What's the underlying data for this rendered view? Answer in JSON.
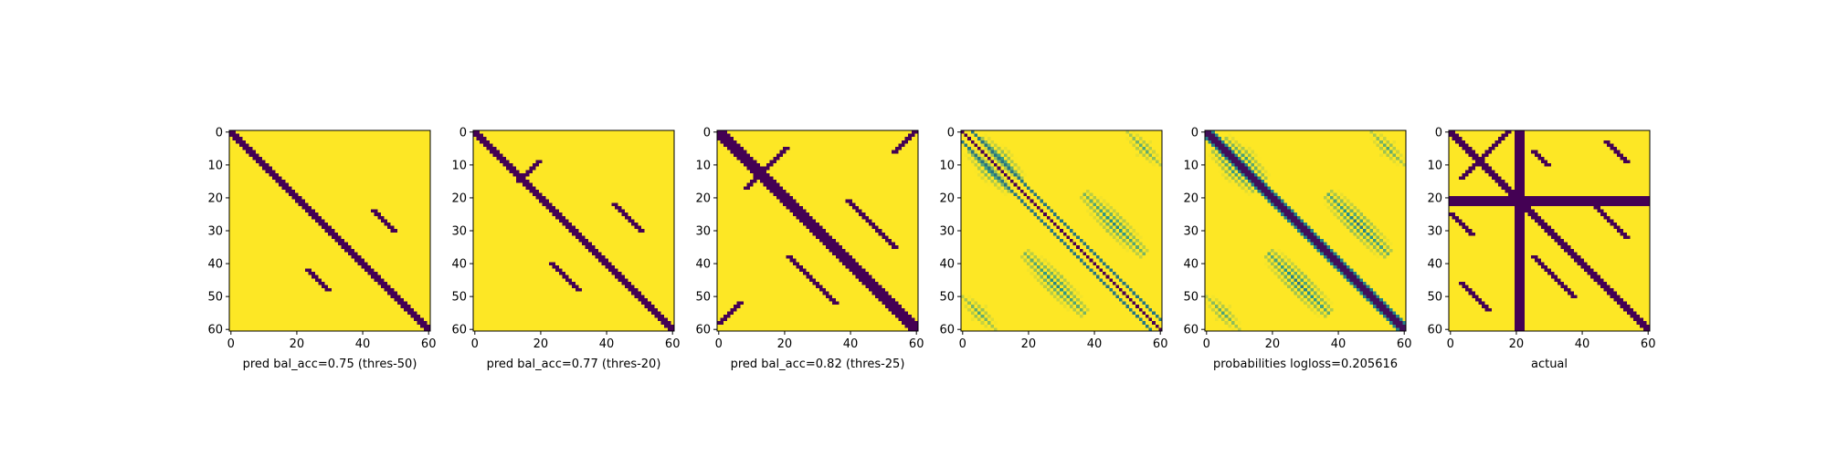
{
  "figure": {
    "background": "#ffffff",
    "colormap": {
      "low": "#440154",
      "mid": "#21918c",
      "high": "#fde725"
    }
  },
  "chart_data": [
    {
      "type": "heatmap",
      "label": "pred bal_acc=0.75 (thres-50)",
      "size": 61,
      "xlim": [
        0,
        60
      ],
      "ylim": [
        0,
        60
      ],
      "xticks": [
        0,
        20,
        40,
        60
      ],
      "yticks": [
        0,
        10,
        20,
        30,
        40,
        50,
        60
      ],
      "background_value": 1,
      "features": [
        {
          "kind": "diag",
          "offset": 0,
          "width": 2.8,
          "value": 0
        },
        {
          "kind": "blob",
          "row": 27,
          "col": 46,
          "len": 3,
          "slope": 1,
          "value": 0
        },
        {
          "kind": "blob",
          "row": 45,
          "col": 26,
          "len": 3,
          "slope": 1,
          "value": 0
        }
      ]
    },
    {
      "type": "heatmap",
      "label": "pred bal_acc=0.77 (thres-20)",
      "size": 61,
      "xlim": [
        0,
        60
      ],
      "ylim": [
        0,
        60
      ],
      "xticks": [
        0,
        20,
        40,
        60
      ],
      "yticks": [
        0,
        10,
        20,
        30,
        40,
        50,
        60
      ],
      "background_value": 1,
      "features": [
        {
          "kind": "diag",
          "offset": 0,
          "width": 3.4,
          "value": 0
        },
        {
          "kind": "blob",
          "row": 26,
          "col": 46,
          "len": 4,
          "slope": 1,
          "value": 0
        },
        {
          "kind": "blob",
          "row": 44,
          "col": 27,
          "len": 4,
          "slope": 1,
          "value": 0
        },
        {
          "kind": "blob",
          "row": 12,
          "col": 16,
          "len": 3,
          "slope": -1,
          "value": 0
        }
      ]
    },
    {
      "type": "heatmap",
      "label": "pred bal_acc=0.82 (thres-25)",
      "size": 61,
      "xlim": [
        0,
        60
      ],
      "ylim": [
        0,
        60
      ],
      "xticks": [
        0,
        20,
        40,
        60
      ],
      "yticks": [
        0,
        10,
        20,
        30,
        40,
        50,
        60
      ],
      "background_value": 1,
      "features": [
        {
          "kind": "diag",
          "offset": 0,
          "width": 4.2,
          "value": 0
        },
        {
          "kind": "blob",
          "row": 28,
          "col": 46,
          "len": 7,
          "slope": 1,
          "value": 0
        },
        {
          "kind": "blob",
          "row": 45,
          "col": 28,
          "len": 7,
          "slope": 1,
          "value": 0
        },
        {
          "kind": "blob",
          "row": 11,
          "col": 14,
          "len": 6,
          "slope": -1,
          "value": 0
        },
        {
          "kind": "blob",
          "row": 3,
          "col": 56,
          "len": 3,
          "slope": -1,
          "value": 0
        },
        {
          "kind": "blob",
          "row": 55,
          "col": 3,
          "len": 3,
          "slope": -1,
          "value": 0
        }
      ]
    },
    {
      "type": "heatmap",
      "label": "",
      "size": 61,
      "xlim": [
        0,
        60
      ],
      "ylim": [
        0,
        60
      ],
      "xticks": [
        0,
        20,
        40,
        60
      ],
      "yticks": [
        0,
        10,
        20,
        30,
        40,
        50,
        60
      ],
      "background_value": 1,
      "features": [
        {
          "kind": "diag",
          "offset": 3,
          "width": 0.8,
          "value": 0.4
        },
        {
          "kind": "diag",
          "offset": -3,
          "width": 0.8,
          "value": 0.4
        },
        {
          "kind": "diag",
          "offset": 0,
          "width": 0.6,
          "value": 0
        },
        {
          "kind": "arc",
          "row": 28,
          "col": 46,
          "len": 9,
          "value": 0.45
        },
        {
          "kind": "arc",
          "row": 46,
          "col": 28,
          "len": 9,
          "value": 0.45
        },
        {
          "kind": "arc",
          "row": 8,
          "col": 12,
          "len": 6,
          "value": 0.55
        },
        {
          "kind": "arc",
          "row": 12,
          "col": 8,
          "len": 6,
          "value": 0.55
        },
        {
          "kind": "arc",
          "row": 5,
          "col": 55,
          "len": 5,
          "value": 0.6
        },
        {
          "kind": "arc",
          "row": 55,
          "col": 5,
          "len": 5,
          "value": 0.6
        }
      ]
    },
    {
      "type": "heatmap",
      "label": "probabilities logloss=0.205616",
      "size": 61,
      "xlim": [
        0,
        60
      ],
      "ylim": [
        0,
        60
      ],
      "xticks": [
        0,
        20,
        40,
        60
      ],
      "yticks": [
        0,
        10,
        20,
        30,
        40,
        50,
        60
      ],
      "background_value": 1,
      "features": [
        {
          "kind": "diag",
          "offset": 0,
          "width": 3.0,
          "value": 0.05
        },
        {
          "kind": "diag",
          "offset": 0,
          "width": 5.5,
          "value": 0.45
        },
        {
          "kind": "arc",
          "row": 28,
          "col": 46,
          "len": 9,
          "value": 0.4
        },
        {
          "kind": "arc",
          "row": 46,
          "col": 28,
          "len": 9,
          "value": 0.4
        },
        {
          "kind": "arc",
          "row": 8,
          "col": 12,
          "len": 6,
          "value": 0.55
        },
        {
          "kind": "arc",
          "row": 12,
          "col": 8,
          "len": 6,
          "value": 0.55
        },
        {
          "kind": "arc",
          "row": 5,
          "col": 55,
          "len": 5,
          "value": 0.6
        },
        {
          "kind": "arc",
          "row": 55,
          "col": 5,
          "len": 5,
          "value": 0.6
        }
      ]
    },
    {
      "type": "heatmap",
      "label": "actual",
      "size": 61,
      "xlim": [
        0,
        60
      ],
      "ylim": [
        0,
        60
      ],
      "xticks": [
        0,
        20,
        40,
        60
      ],
      "yticks": [
        0,
        10,
        20,
        30,
        40,
        50,
        60
      ],
      "background_value": 1,
      "features": [
        {
          "kind": "diag",
          "offset": 0,
          "width": 2.2,
          "value": 0
        },
        {
          "kind": "row",
          "index": 21,
          "width": 3,
          "value": 0
        },
        {
          "kind": "col",
          "index": 21,
          "width": 3,
          "value": 0
        },
        {
          "kind": "blob",
          "row": 7,
          "col": 10,
          "len": 7,
          "slope": -1,
          "value": 0
        },
        {
          "kind": "blob",
          "row": 26,
          "col": 47,
          "len": 6,
          "slope": 1,
          "value": 0
        },
        {
          "kind": "blob",
          "row": 44,
          "col": 31,
          "len": 6,
          "slope": 1,
          "value": 0
        },
        {
          "kind": "blob",
          "row": 6,
          "col": 50,
          "len": 3,
          "slope": 1,
          "value": 0
        },
        {
          "kind": "blob",
          "row": 8,
          "col": 27,
          "len": 2,
          "slope": 1,
          "value": 0
        },
        {
          "kind": "blob",
          "row": 50,
          "col": 7,
          "len": 4,
          "slope": 1,
          "value": 0
        },
        {
          "kind": "blob",
          "row": 28,
          "col": 3,
          "len": 3,
          "slope": 1,
          "value": 0
        }
      ]
    }
  ]
}
